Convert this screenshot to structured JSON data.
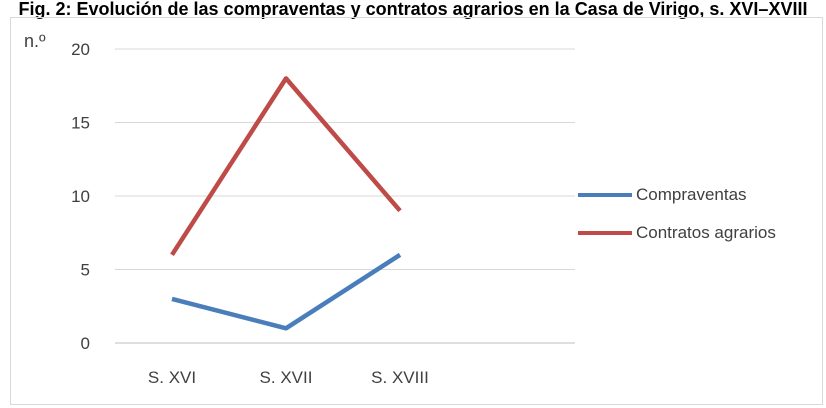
{
  "chart_data": {
    "type": "line",
    "title": "Fig. 2: Evolución de las compraventas y contratos agrarios en la Casa de Virigo, s. XVI–XVIII",
    "ylabel": "n.º",
    "categories": [
      "S. XVI",
      "S. XVII",
      "S. XVIII"
    ],
    "ylim": [
      0,
      20
    ],
    "yticks": [
      0,
      5,
      10,
      15,
      20
    ],
    "grid": true,
    "legend_position": "right",
    "series": [
      {
        "name": "Compraventas",
        "values": [
          3,
          1,
          6
        ],
        "color": "#4a7ebb"
      },
      {
        "name": "Contratos agrarios",
        "values": [
          6,
          18,
          9
        ],
        "color": "#be4b48"
      }
    ]
  }
}
